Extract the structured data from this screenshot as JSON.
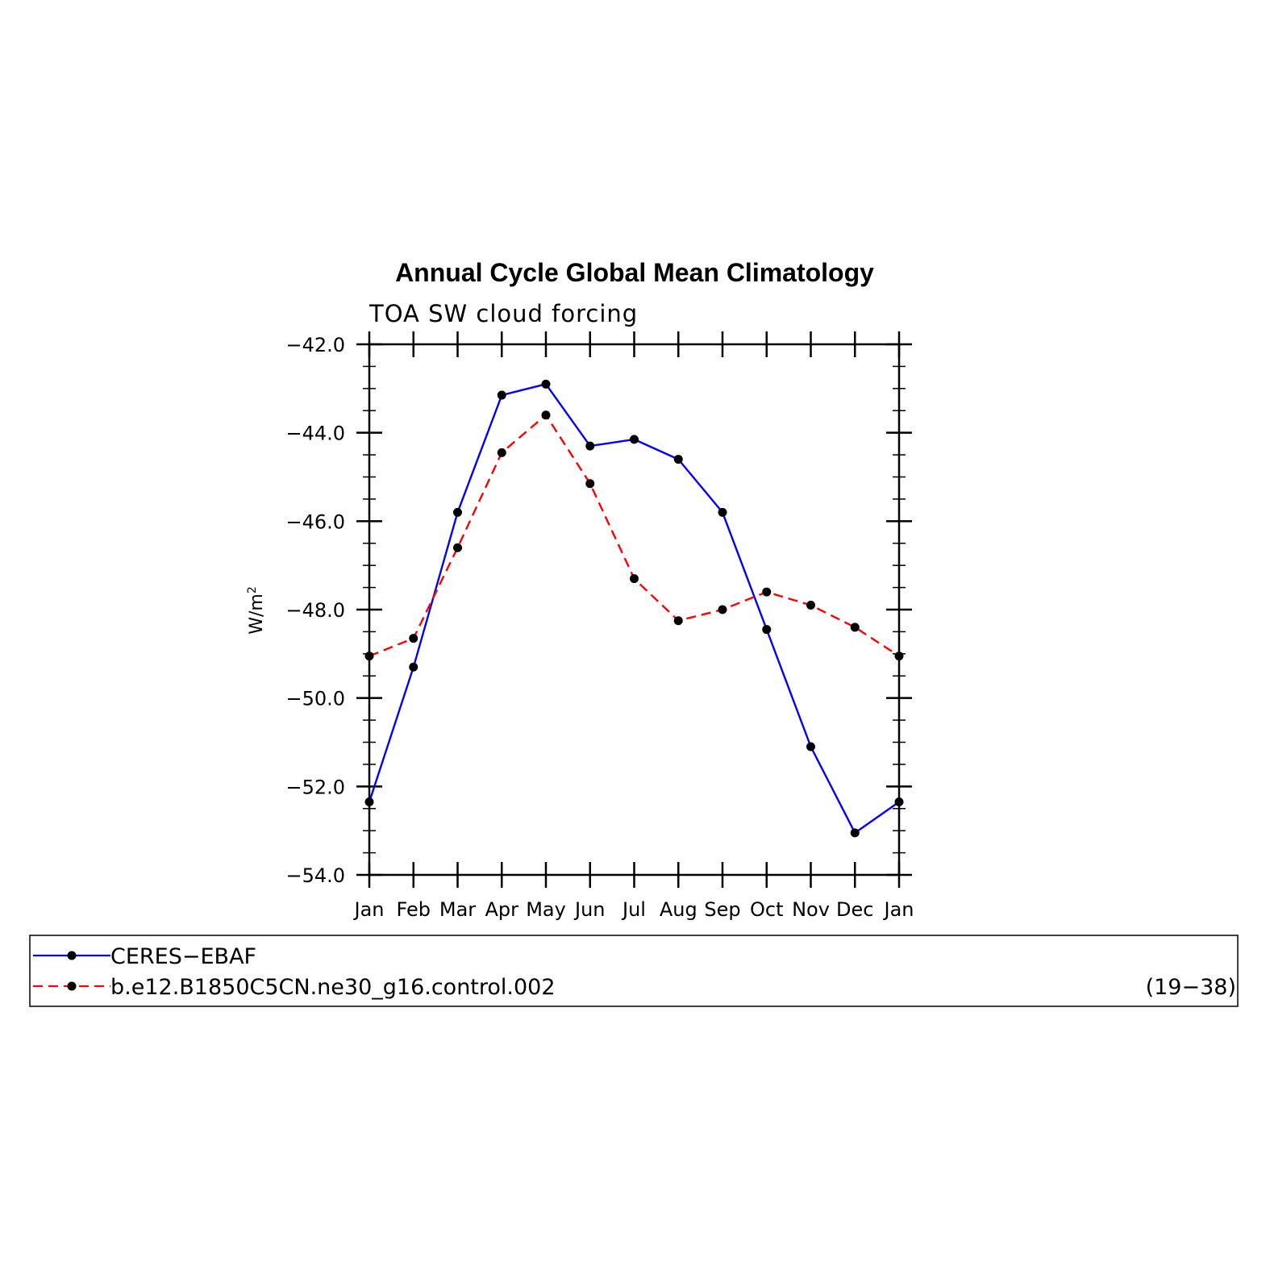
{
  "chart_data": {
    "type": "line",
    "title": "Annual Cycle Global Mean Climatology",
    "subtitle": "TOA SW cloud forcing",
    "ylabel": "W/m",
    "ylabel_superscript": "2",
    "xlabel": "",
    "categories": [
      "Jan",
      "Feb",
      "Mar",
      "Apr",
      "May",
      "Jun",
      "Jul",
      "Aug",
      "Sep",
      "Oct",
      "Nov",
      "Dec",
      "Jan"
    ],
    "ylim": [
      -54.0,
      -42.0
    ],
    "yticks": [
      -42.0,
      -44.0,
      -46.0,
      -48.0,
      -50.0,
      -52.0,
      -54.0
    ],
    "ytick_labels": [
      "−42.0",
      "−44.0",
      "−46.0",
      "−48.0",
      "−50.0",
      "−52.0",
      "−54.0"
    ],
    "grid": false,
    "legend_position": "bottom",
    "series": [
      {
        "name": "CERES−EBAF",
        "color": "#0000ff",
        "style": "solid",
        "marker": "circle",
        "values": [
          -52.35,
          -49.3,
          -45.8,
          -43.15,
          -42.9,
          -44.3,
          -44.15,
          -44.6,
          -45.8,
          -48.45,
          -51.1,
          -53.05,
          -52.35
        ]
      },
      {
        "name": "b.e12.B1850C5CN.ne30_g16.control.002",
        "color": "#ff0000",
        "style": "dashed",
        "marker": "circle",
        "values": [
          -49.05,
          -48.65,
          -46.6,
          -44.45,
          -43.6,
          -45.15,
          -47.3,
          -48.25,
          -48.0,
          -47.6,
          -47.9,
          -48.4,
          -49.05
        ]
      }
    ],
    "legend_note": "(19−38)"
  }
}
